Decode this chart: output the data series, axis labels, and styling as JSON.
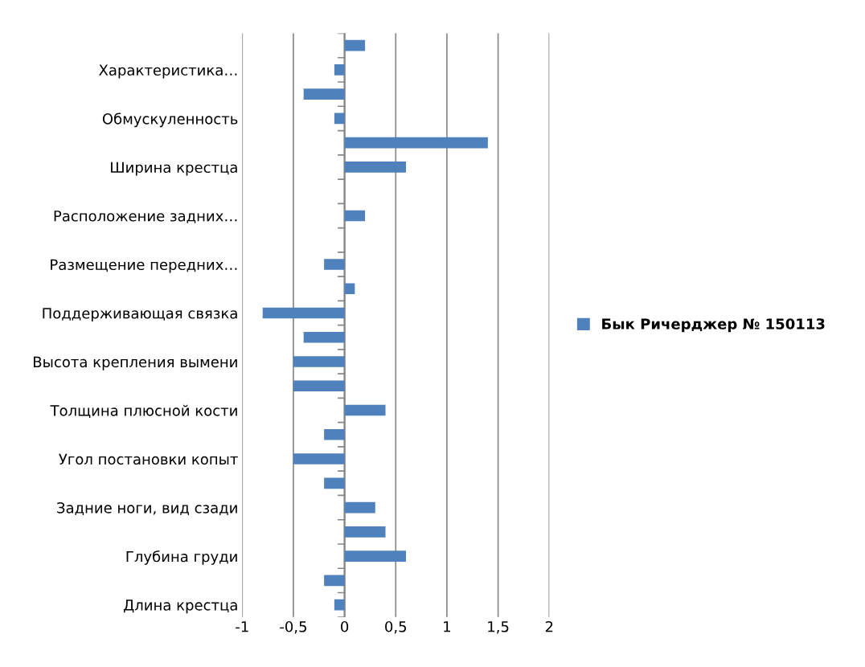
{
  "chart_data": {
    "type": "bar",
    "orientation": "horizontal",
    "categories": [
      null,
      "Характеристика…",
      null,
      "Обмускуленность",
      null,
      "Ширина крестца",
      null,
      "Расположение задних…",
      null,
      "Размещение передних…",
      null,
      "Поддерживающая связка",
      null,
      "Высота крепления вымени",
      null,
      "Толщина плюсной кости",
      null,
      "Угол постановки копыт",
      null,
      "Задние ноги, вид сзади",
      null,
      "Глубина груди",
      null,
      "Длина крестца"
    ],
    "series": [
      {
        "name": "Бык Ричерджер № 150113",
        "color": "#4f81bd",
        "values": [
          0.2,
          -0.1,
          -0.4,
          -0.1,
          1.4,
          0.6,
          0,
          0.2,
          0,
          -0.2,
          0.1,
          -0.8,
          -0.4,
          -0.5,
          -0.5,
          0.4,
          -0.2,
          -0.5,
          -0.2,
          0.3,
          0.4,
          0.6,
          -0.2,
          -0.1
        ]
      }
    ],
    "xlim": [
      -1,
      2
    ],
    "xticks": [
      -1,
      {
        "value": -0.5,
        "label": "-0,5"
      },
      0,
      {
        "value": 0.5,
        "label": "0,5"
      },
      1,
      {
        "value": 1.5,
        "label": "1,5"
      },
      2
    ],
    "grid": "x",
    "legend": "right"
  }
}
